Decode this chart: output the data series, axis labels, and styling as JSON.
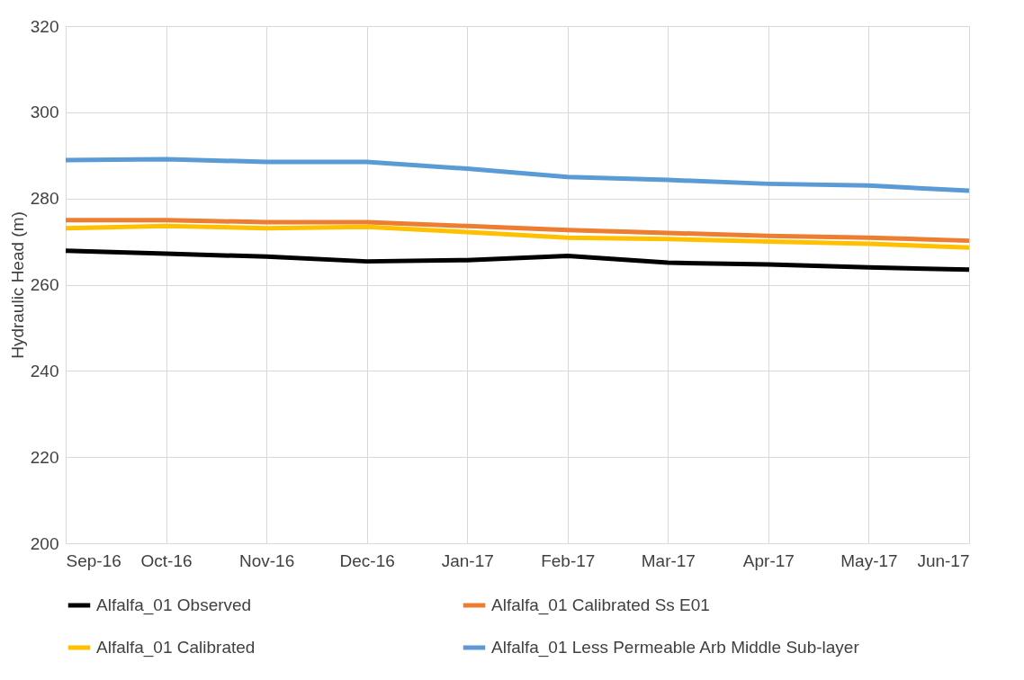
{
  "chart_data": {
    "type": "line",
    "ylabel": "Hydraulic Head (m)",
    "categories": [
      "Sep-16",
      "Oct-16",
      "Nov-16",
      "Dec-16",
      "Jan-17",
      "Feb-17",
      "Mar-17",
      "Apr-17",
      "May-17",
      "Jun-17"
    ],
    "series": [
      {
        "name": "Alfalfa_01 Observed",
        "color": "#000000",
        "values": [
          267.9,
          267.2,
          266.5,
          265.4,
          265.7,
          266.7,
          265.1,
          264.7,
          264.0,
          263.5
        ]
      },
      {
        "name": "Alfalfa_01 Calibrated Ss E01",
        "color": "#ed7d31",
        "values": [
          275.0,
          275.0,
          274.5,
          274.5,
          273.6,
          272.7,
          272.0,
          271.3,
          270.9,
          270.2
        ]
      },
      {
        "name": "Alfalfa_01 Calibrated",
        "color": "#ffc000",
        "values": [
          273.1,
          273.6,
          273.1,
          273.4,
          272.2,
          270.9,
          270.6,
          270.0,
          269.5,
          268.6
        ]
      },
      {
        "name": "Alfalfa_01 Less Permeable Arb Middle Sub-layer",
        "color": "#5b9bd5",
        "values": [
          288.9,
          289.1,
          288.5,
          288.5,
          286.9,
          285.0,
          284.3,
          283.4,
          283.0,
          281.8
        ]
      }
    ],
    "ylim": [
      200,
      320
    ],
    "yticks": [
      200,
      220,
      240,
      260,
      280,
      300,
      320
    ],
    "grid": true,
    "legend": "bottom",
    "marker": "none",
    "line_style": "solid"
  }
}
